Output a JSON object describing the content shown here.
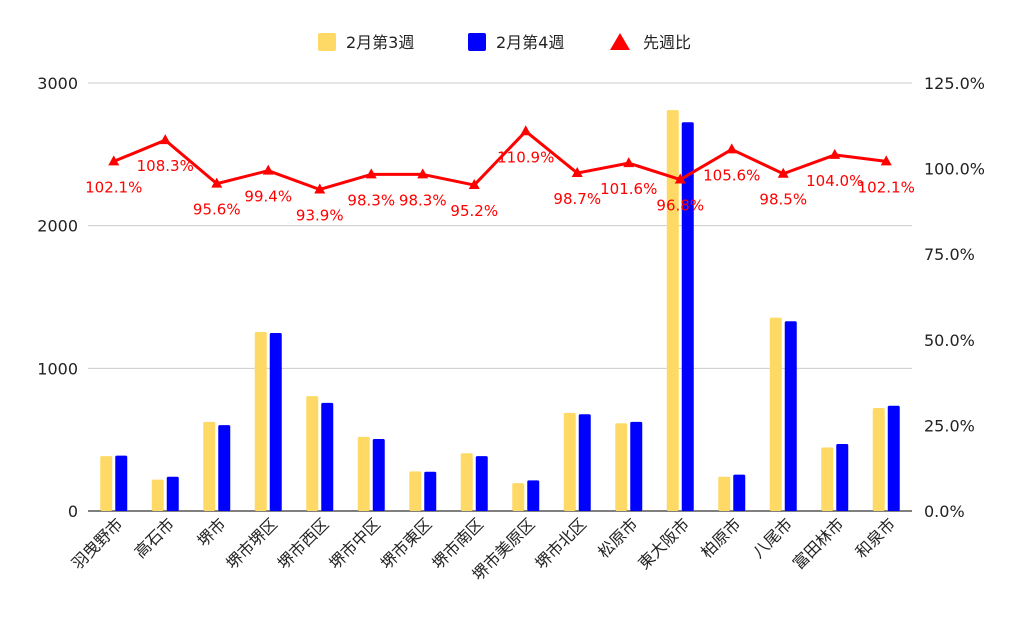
{
  "chart_data": {
    "type": "bar",
    "categories": [
      "羽曳野市",
      "高石市",
      "堺市",
      "堺市堺区",
      "堺市西区",
      "堺市中区",
      "堺市東区",
      "堺市南区",
      "堺市美原区",
      "堺市北区",
      "松原市",
      "東大阪市",
      "柏原市",
      "八尾市",
      "富田林市",
      "和泉市"
    ],
    "series": [
      {
        "name": "2月第3週",
        "type": "bar",
        "axis": "left",
        "color": "#ffd966",
        "values": [
          385,
          220,
          625,
          1255,
          805,
          520,
          278,
          405,
          195,
          688,
          615,
          2810,
          240,
          1355,
          445,
          722
        ]
      },
      {
        "name": "2月第4週",
        "type": "bar",
        "axis": "left",
        "color": "#0000ff",
        "values": [
          388,
          240,
          602,
          1248,
          758,
          505,
          275,
          385,
          215,
          678,
          625,
          2725,
          255,
          1330,
          470,
          738
        ]
      },
      {
        "name": "先週比",
        "type": "line",
        "axis": "right",
        "color": "#ff0000",
        "values": [
          102.1,
          108.3,
          95.6,
          99.4,
          93.9,
          98.3,
          98.3,
          95.2,
          110.9,
          98.7,
          101.6,
          96.8,
          105.6,
          98.5,
          104.0,
          102.1
        ],
        "labels": [
          "102.1%",
          "108.3%",
          "95.6%",
          "99.4%",
          "93.9%",
          "98.3%",
          "98.3%",
          "95.2%",
          "110.9%",
          "98.7%",
          "101.6%",
          "96.8%",
          "105.6%",
          "98.5%",
          "104.0%",
          "102.1%"
        ]
      }
    ],
    "left_axis": {
      "min": 0,
      "max": 3000,
      "ticks": [
        "0",
        "1000",
        "2000",
        "3000"
      ]
    },
    "right_axis": {
      "min": 0,
      "max": 125,
      "ticks": [
        "0.0%",
        "25.0%",
        "50.0%",
        "75.0%",
        "100.0%",
        "125.0%"
      ]
    },
    "legend_position": "top",
    "grid": true
  }
}
